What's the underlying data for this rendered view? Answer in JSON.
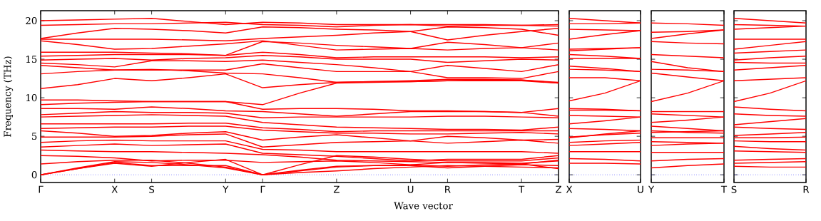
{
  "chart_data": [
    {
      "type": "line",
      "xlabel": "Wave vector",
      "ylabel": "Frequency (THz)",
      "ylim": [
        -1,
        21.3
      ],
      "yticks": [
        0,
        5,
        10,
        15,
        20
      ],
      "categories": [
        "Γ",
        null,
        "X",
        "S",
        null,
        "Y",
        "Γ",
        null,
        "Z",
        null,
        "U",
        "R",
        null,
        "T",
        "Z"
      ],
      "ref_lines": [
        {
          "axis": "y",
          "value": 0,
          "color": "#0000ff",
          "line_style": "dotted"
        }
      ],
      "series": [
        {
          "color": "#ff0000",
          "values": [
            20.0,
            20.1,
            20.2,
            20.3,
            19.9,
            19.5,
            19.8,
            19.7,
            19.5,
            19.5,
            19.5,
            19.5,
            19.5,
            19.4,
            19.5
          ]
        },
        {
          "color": "#ff0000",
          "values": [
            19.4,
            19.5,
            19.6,
            19.6,
            19.7,
            19.8,
            19.5,
            19.4,
            19.2,
            19.4,
            19.5,
            19.3,
            19.4,
            19.4,
            19.3
          ]
        },
        {
          "color": "#ff0000",
          "values": [
            17.7,
            18.4,
            19.0,
            18.9,
            18.7,
            18.4,
            19.2,
            19.1,
            18.9,
            18.8,
            18.6,
            17.5,
            18.1,
            18.6,
            19.0
          ]
        },
        {
          "color": "#ff0000",
          "values": [
            17.6,
            17.6,
            17.6,
            17.6,
            17.5,
            17.4,
            17.7,
            17.9,
            18.1,
            18.4,
            18.6,
            19.2,
            19.1,
            18.9,
            18.1
          ]
        },
        {
          "color": "#ff0000",
          "values": [
            17.4,
            16.9,
            16.3,
            16.4,
            16.7,
            17.0,
            17.4,
            16.8,
            16.2,
            16.3,
            16.4,
            16.2,
            16.4,
            16.5,
            16.2
          ]
        },
        {
          "color": "#ff0000",
          "values": [
            15.9,
            15.9,
            15.9,
            15.8,
            15.7,
            15.5,
            17.3,
            17.1,
            16.8,
            16.6,
            16.4,
            17.2,
            16.9,
            16.5,
            17.1
          ]
        },
        {
          "color": "#ff0000",
          "values": [
            15.4,
            15.5,
            15.6,
            15.6,
            15.6,
            15.5,
            15.9,
            15.6,
            15.2,
            15.3,
            15.3,
            15.3,
            15.3,
            15.2,
            15.3
          ]
        },
        {
          "color": "#ff0000",
          "values": [
            14.9,
            15.0,
            15.1,
            14.9,
            15.1,
            15.2,
            15.5,
            15.3,
            15.0,
            15.0,
            15.0,
            14.6,
            14.8,
            15.0,
            14.9
          ]
        },
        {
          "color": "#ff0000",
          "values": [
            14.5,
            14.3,
            14.0,
            14.8,
            14.8,
            14.7,
            14.9,
            14.6,
            14.3,
            13.9,
            13.4,
            14.2,
            13.8,
            13.4,
            14.3
          ]
        },
        {
          "color": "#ff0000",
          "values": [
            14.2,
            13.9,
            13.6,
            13.6,
            13.6,
            13.6,
            14.4,
            13.9,
            13.4,
            13.4,
            13.4,
            12.6,
            12.6,
            12.5,
            13.4
          ]
        },
        {
          "color": "#ff0000",
          "values": [
            13.1,
            13.4,
            13.6,
            13.7,
            13.5,
            13.2,
            13.1,
            12.6,
            12.0,
            12.1,
            12.2,
            12.4,
            12.4,
            12.3,
            11.9
          ]
        },
        {
          "color": "#ff0000",
          "values": [
            11.2,
            11.7,
            12.5,
            12.2,
            12.6,
            13.1,
            11.3,
            11.7,
            12.0,
            12.1,
            12.1,
            12.2,
            12.2,
            12.2,
            11.9
          ]
        },
        {
          "color": "#ff0000",
          "values": [
            9.7,
            9.7,
            9.6,
            9.5,
            9.5,
            9.5,
            9.1,
            10.6,
            11.9,
            12.0,
            12.1,
            12.2,
            12.3,
            12.3,
            12.0
          ]
        },
        {
          "color": "#ff0000",
          "values": [
            9.1,
            9.3,
            9.4,
            9.5,
            9.5,
            9.5,
            8.5,
            8.6,
            8.6,
            8.5,
            8.3,
            8.3,
            8.2,
            8.1,
            8.6
          ]
        },
        {
          "color": "#ff0000",
          "values": [
            8.6,
            8.6,
            8.5,
            8.8,
            8.6,
            8.3,
            8.2,
            7.9,
            7.6,
            7.9,
            8.2,
            8.2,
            8.2,
            8.1,
            7.6
          ]
        },
        {
          "color": "#ff0000",
          "values": [
            7.8,
            8.0,
            8.2,
            8.1,
            8.1,
            8.0,
            7.4,
            7.5,
            7.5,
            7.5,
            7.5,
            7.6,
            7.6,
            7.5,
            7.4
          ]
        },
        {
          "color": "#ff0000",
          "values": [
            7.5,
            7.6,
            7.7,
            7.8,
            7.7,
            7.6,
            6.8,
            6.5,
            6.2,
            6.1,
            6.0,
            5.9,
            5.9,
            5.8,
            6.2
          ]
        },
        {
          "color": "#ff0000",
          "values": [
            6.6,
            6.6,
            6.6,
            6.6,
            6.7,
            6.7,
            6.1,
            5.9,
            5.6,
            5.7,
            5.7,
            5.7,
            5.7,
            5.7,
            5.7
          ]
        },
        {
          "color": "#ff0000",
          "values": [
            6.0,
            6.1,
            6.2,
            6.2,
            6.3,
            6.3,
            5.8,
            5.6,
            5.4,
            5.4,
            5.3,
            5.3,
            5.4,
            5.5,
            5.3
          ]
        },
        {
          "color": "#ff0000",
          "values": [
            5.7,
            5.4,
            5.0,
            5.1,
            5.4,
            5.6,
            4.5,
            4.9,
            5.2,
            4.8,
            4.4,
            5.0,
            4.8,
            4.5,
            4.6
          ]
        },
        {
          "color": "#ff0000",
          "values": [
            4.9,
            4.9,
            4.9,
            5.0,
            5.2,
            5.3,
            3.6,
            3.9,
            4.2,
            4.3,
            4.4,
            4.1,
            4.3,
            4.5,
            4.1
          ]
        },
        {
          "color": "#ff0000",
          "values": [
            4.2,
            4.4,
            4.5,
            4.4,
            4.4,
            4.4,
            3.3,
            3.2,
            3.0,
            3.0,
            3.0,
            3.0,
            3.0,
            3.0,
            2.8
          ]
        },
        {
          "color": "#ff0000",
          "values": [
            3.6,
            3.8,
            4.0,
            3.8,
            3.9,
            4.0,
            2.8,
            2.6,
            2.4,
            2.1,
            1.8,
            2.0,
            2.0,
            2.0,
            2.5
          ]
        },
        {
          "color": "#ff0000",
          "values": [
            3.2,
            3.1,
            3.0,
            3.0,
            2.9,
            2.8,
            2.6,
            2.3,
            1.9,
            1.8,
            1.7,
            1.6,
            1.6,
            1.5,
            1.8
          ]
        },
        {
          "color": "#ff0000",
          "values": [
            2.5,
            2.4,
            2.2,
            1.8,
            1.9,
            1.9,
            1.6,
            1.7,
            1.8,
            1.6,
            1.3,
            1.1,
            1.3,
            1.4,
            0.8
          ]
        },
        {
          "color": "#ff0000",
          "values": [
            1.4,
            1.7,
            1.9,
            1.9,
            1.5,
            1.0,
            0,
            1.3,
            2.5,
            2.3,
            2.0,
            1.8,
            1.8,
            1.8,
            2.2
          ]
        },
        {
          "color": "#ff0000",
          "values": [
            0,
            0.8,
            1.6,
            1.2,
            1.2,
            1.2,
            0,
            0.5,
            1.0,
            1.2,
            1.3,
            1.6,
            1.5,
            1.4,
            1.9
          ]
        },
        {
          "color": "#ff0000",
          "values": [
            0,
            0.9,
            1.7,
            1.6,
            1.3,
            0.9,
            0,
            0.6,
            1.1,
            1.2,
            1.2,
            0.9,
            1.1,
            1.3,
            1.2
          ]
        },
        {
          "color": "#ff0000",
          "values": [
            0,
            0.8,
            1.5,
            1.1,
            1.6,
            2.0,
            0,
            0.3,
            0.5,
            0.8,
            1.0,
            1.2,
            1.1,
            1.0,
            0.9
          ]
        }
      ]
    },
    {
      "type": "line",
      "ylim": [
        -1,
        21.3
      ],
      "yticks": [
        0,
        5,
        10,
        15,
        20
      ],
      "tick_labels": "x",
      "categories": [
        "X",
        null,
        "U"
      ],
      "ref_lines": [
        {
          "axis": "y",
          "value": 0,
          "color": "#0000ff",
          "line_style": "dotted"
        }
      ],
      "series": [
        {
          "color": "#ff0000",
          "values": [
            20.3,
            20.0,
            19.7
          ]
        },
        {
          "color": "#ff0000",
          "values": [
            19.6,
            19.6,
            19.7
          ]
        },
        {
          "color": "#ff0000",
          "values": [
            18.9,
            18.8,
            18.7
          ]
        },
        {
          "color": "#ff0000",
          "values": [
            17.6,
            18.2,
            18.7
          ]
        },
        {
          "color": "#ff0000",
          "values": [
            16.3,
            16.4,
            16.5
          ]
        },
        {
          "color": "#ff0000",
          "values": [
            16.1,
            16.3,
            16.5
          ]
        },
        {
          "color": "#ff0000",
          "values": [
            15.6,
            15.4,
            15.1
          ]
        },
        {
          "color": "#ff0000",
          "values": [
            15.1,
            15.1,
            15.1
          ]
        },
        {
          "color": "#ff0000",
          "values": [
            14.1,
            13.8,
            13.4
          ]
        },
        {
          "color": "#ff0000",
          "values": [
            13.7,
            13.6,
            13.4
          ]
        },
        {
          "color": "#ff0000",
          "values": [
            12.6,
            12.6,
            12.2
          ]
        },
        {
          "color": "#ff0000",
          "values": [
            9.6,
            10.6,
            12.2
          ]
        },
        {
          "color": "#ff0000",
          "values": [
            8.6,
            8.5,
            8.3
          ]
        },
        {
          "color": "#ff0000",
          "values": [
            8.4,
            8.4,
            8.3
          ]
        },
        {
          "color": "#ff0000",
          "values": [
            7.7,
            7.6,
            7.5
          ]
        },
        {
          "color": "#ff0000",
          "values": [
            6.6,
            7.0,
            7.5
          ]
        },
        {
          "color": "#ff0000",
          "values": [
            6.0,
            5.9,
            5.7
          ]
        },
        {
          "color": "#ff0000",
          "values": [
            4.9,
            5.2,
            5.4
          ]
        },
        {
          "color": "#ff0000",
          "values": [
            4.8,
            5.3,
            5.7
          ]
        },
        {
          "color": "#ff0000",
          "values": [
            4.2,
            4.4,
            4.5
          ]
        },
        {
          "color": "#ff0000",
          "values": [
            3.8,
            4.0,
            4.2
          ]
        },
        {
          "color": "#ff0000",
          "values": [
            3.0,
            3.0,
            3.0
          ]
        },
        {
          "color": "#ff0000",
          "values": [
            2.1,
            2.0,
            1.8
          ]
        },
        {
          "color": "#ff0000",
          "values": [
            1.5,
            1.5,
            1.4
          ]
        }
      ]
    },
    {
      "type": "line",
      "ylim": [
        -1,
        21.3
      ],
      "yticks": [
        0,
        5,
        10,
        15,
        20
      ],
      "tick_labels": "x",
      "categories": [
        "Y",
        null,
        "T"
      ],
      "ref_lines": [
        {
          "axis": "y",
          "value": 0,
          "color": "#0000ff",
          "line_style": "dotted"
        }
      ],
      "series": [
        {
          "color": "#ff0000",
          "values": [
            19.7,
            19.6,
            19.4
          ]
        },
        {
          "color": "#ff0000",
          "values": [
            18.5,
            18.6,
            18.8
          ]
        },
        {
          "color": "#ff0000",
          "values": [
            17.7,
            18.3,
            18.8
          ]
        },
        {
          "color": "#ff0000",
          "values": [
            17.3,
            17.1,
            17.0
          ]
        },
        {
          "color": "#ff0000",
          "values": [
            15.6,
            15.4,
            15.2
          ]
        },
        {
          "color": "#ff0000",
          "values": [
            14.7,
            13.9,
            13.4
          ]
        },
        {
          "color": "#ff0000",
          "values": [
            13.7,
            13.6,
            13.4
          ]
        },
        {
          "color": "#ff0000",
          "values": [
            13.2,
            12.7,
            12.2
          ]
        },
        {
          "color": "#ff0000",
          "values": [
            9.5,
            10.6,
            12.2
          ]
        },
        {
          "color": "#ff0000",
          "values": [
            8.2,
            8.2,
            8.2
          ]
        },
        {
          "color": "#ff0000",
          "values": [
            7.9,
            7.7,
            7.5
          ]
        },
        {
          "color": "#ff0000",
          "values": [
            6.8,
            7.1,
            7.5
          ]
        },
        {
          "color": "#ff0000",
          "values": [
            6.3,
            6.0,
            5.7
          ]
        },
        {
          "color": "#ff0000",
          "values": [
            5.7,
            5.5,
            5.4
          ]
        },
        {
          "color": "#ff0000",
          "values": [
            5.5,
            5.6,
            5.7
          ]
        },
        {
          "color": "#ff0000",
          "values": [
            4.8,
            4.8,
            4.8
          ]
        },
        {
          "color": "#ff0000",
          "values": [
            4.3,
            4.2,
            4.1
          ]
        },
        {
          "color": "#ff0000",
          "values": [
            3.8,
            4.0,
            4.1
          ]
        },
        {
          "color": "#ff0000",
          "values": [
            2.9,
            2.9,
            2.9
          ]
        },
        {
          "color": "#ff0000",
          "values": [
            1.8,
            2.0,
            2.1
          ]
        },
        {
          "color": "#ff0000",
          "values": [
            0.9,
            1.2,
            1.4
          ]
        }
      ]
    },
    {
      "type": "line",
      "ylim": [
        -1,
        21.3
      ],
      "yticks": [
        0,
        5,
        10,
        15,
        20
      ],
      "tick_labels": "x",
      "categories": [
        "S",
        null,
        "R"
      ],
      "ref_lines": [
        {
          "axis": "y",
          "value": 0,
          "color": "#0000ff",
          "line_style": "dotted"
        }
      ],
      "series": [
        {
          "color": "#ff0000",
          "values": [
            20.3,
            20.0,
            19.7
          ]
        },
        {
          "color": "#ff0000",
          "values": [
            19.5,
            19.4,
            19.3
          ]
        },
        {
          "color": "#ff0000",
          "values": [
            18.9,
            19.1,
            19.3
          ]
        },
        {
          "color": "#ff0000",
          "values": [
            17.6,
            17.6,
            17.6
          ]
        },
        {
          "color": "#ff0000",
          "values": [
            16.3,
            16.8,
            17.3
          ]
        },
        {
          "color": "#ff0000",
          "values": [
            15.8,
            16.0,
            16.2
          ]
        },
        {
          "color": "#ff0000",
          "values": [
            14.9,
            15.2,
            15.4
          ]
        },
        {
          "color": "#ff0000",
          "values": [
            14.6,
            14.5,
            14.5
          ]
        },
        {
          "color": "#ff0000",
          "values": [
            13.6,
            13.9,
            14.2
          ]
        },
        {
          "color": "#ff0000",
          "values": [
            12.2,
            12.4,
            12.6
          ]
        },
        {
          "color": "#ff0000",
          "values": [
            9.5,
            10.6,
            12.2
          ]
        },
        {
          "color": "#ff0000",
          "values": [
            8.8,
            8.5,
            8.3
          ]
        },
        {
          "color": "#ff0000",
          "values": [
            7.9,
            7.7,
            7.6
          ]
        },
        {
          "color": "#ff0000",
          "values": [
            6.5,
            6.9,
            7.3
          ]
        },
        {
          "color": "#ff0000",
          "values": [
            6.2,
            6.0,
            5.9
          ]
        },
        {
          "color": "#ff0000",
          "values": [
            5.1,
            5.3,
            5.5
          ]
        },
        {
          "color": "#ff0000",
          "values": [
            4.8,
            4.8,
            4.9
          ]
        },
        {
          "color": "#ff0000",
          "values": [
            4.4,
            4.3,
            4.3
          ]
        },
        {
          "color": "#ff0000",
          "values": [
            3.7,
            3.4,
            3.2
          ]
        },
        {
          "color": "#ff0000",
          "values": [
            3.1,
            3.0,
            2.9
          ]
        },
        {
          "color": "#ff0000",
          "values": [
            1.9,
            2.0,
            2.1
          ]
        },
        {
          "color": "#ff0000",
          "values": [
            1.5,
            1.6,
            1.7
          ]
        },
        {
          "color": "#ff0000",
          "values": [
            1.1,
            1.0,
            1.0
          ]
        }
      ]
    }
  ]
}
